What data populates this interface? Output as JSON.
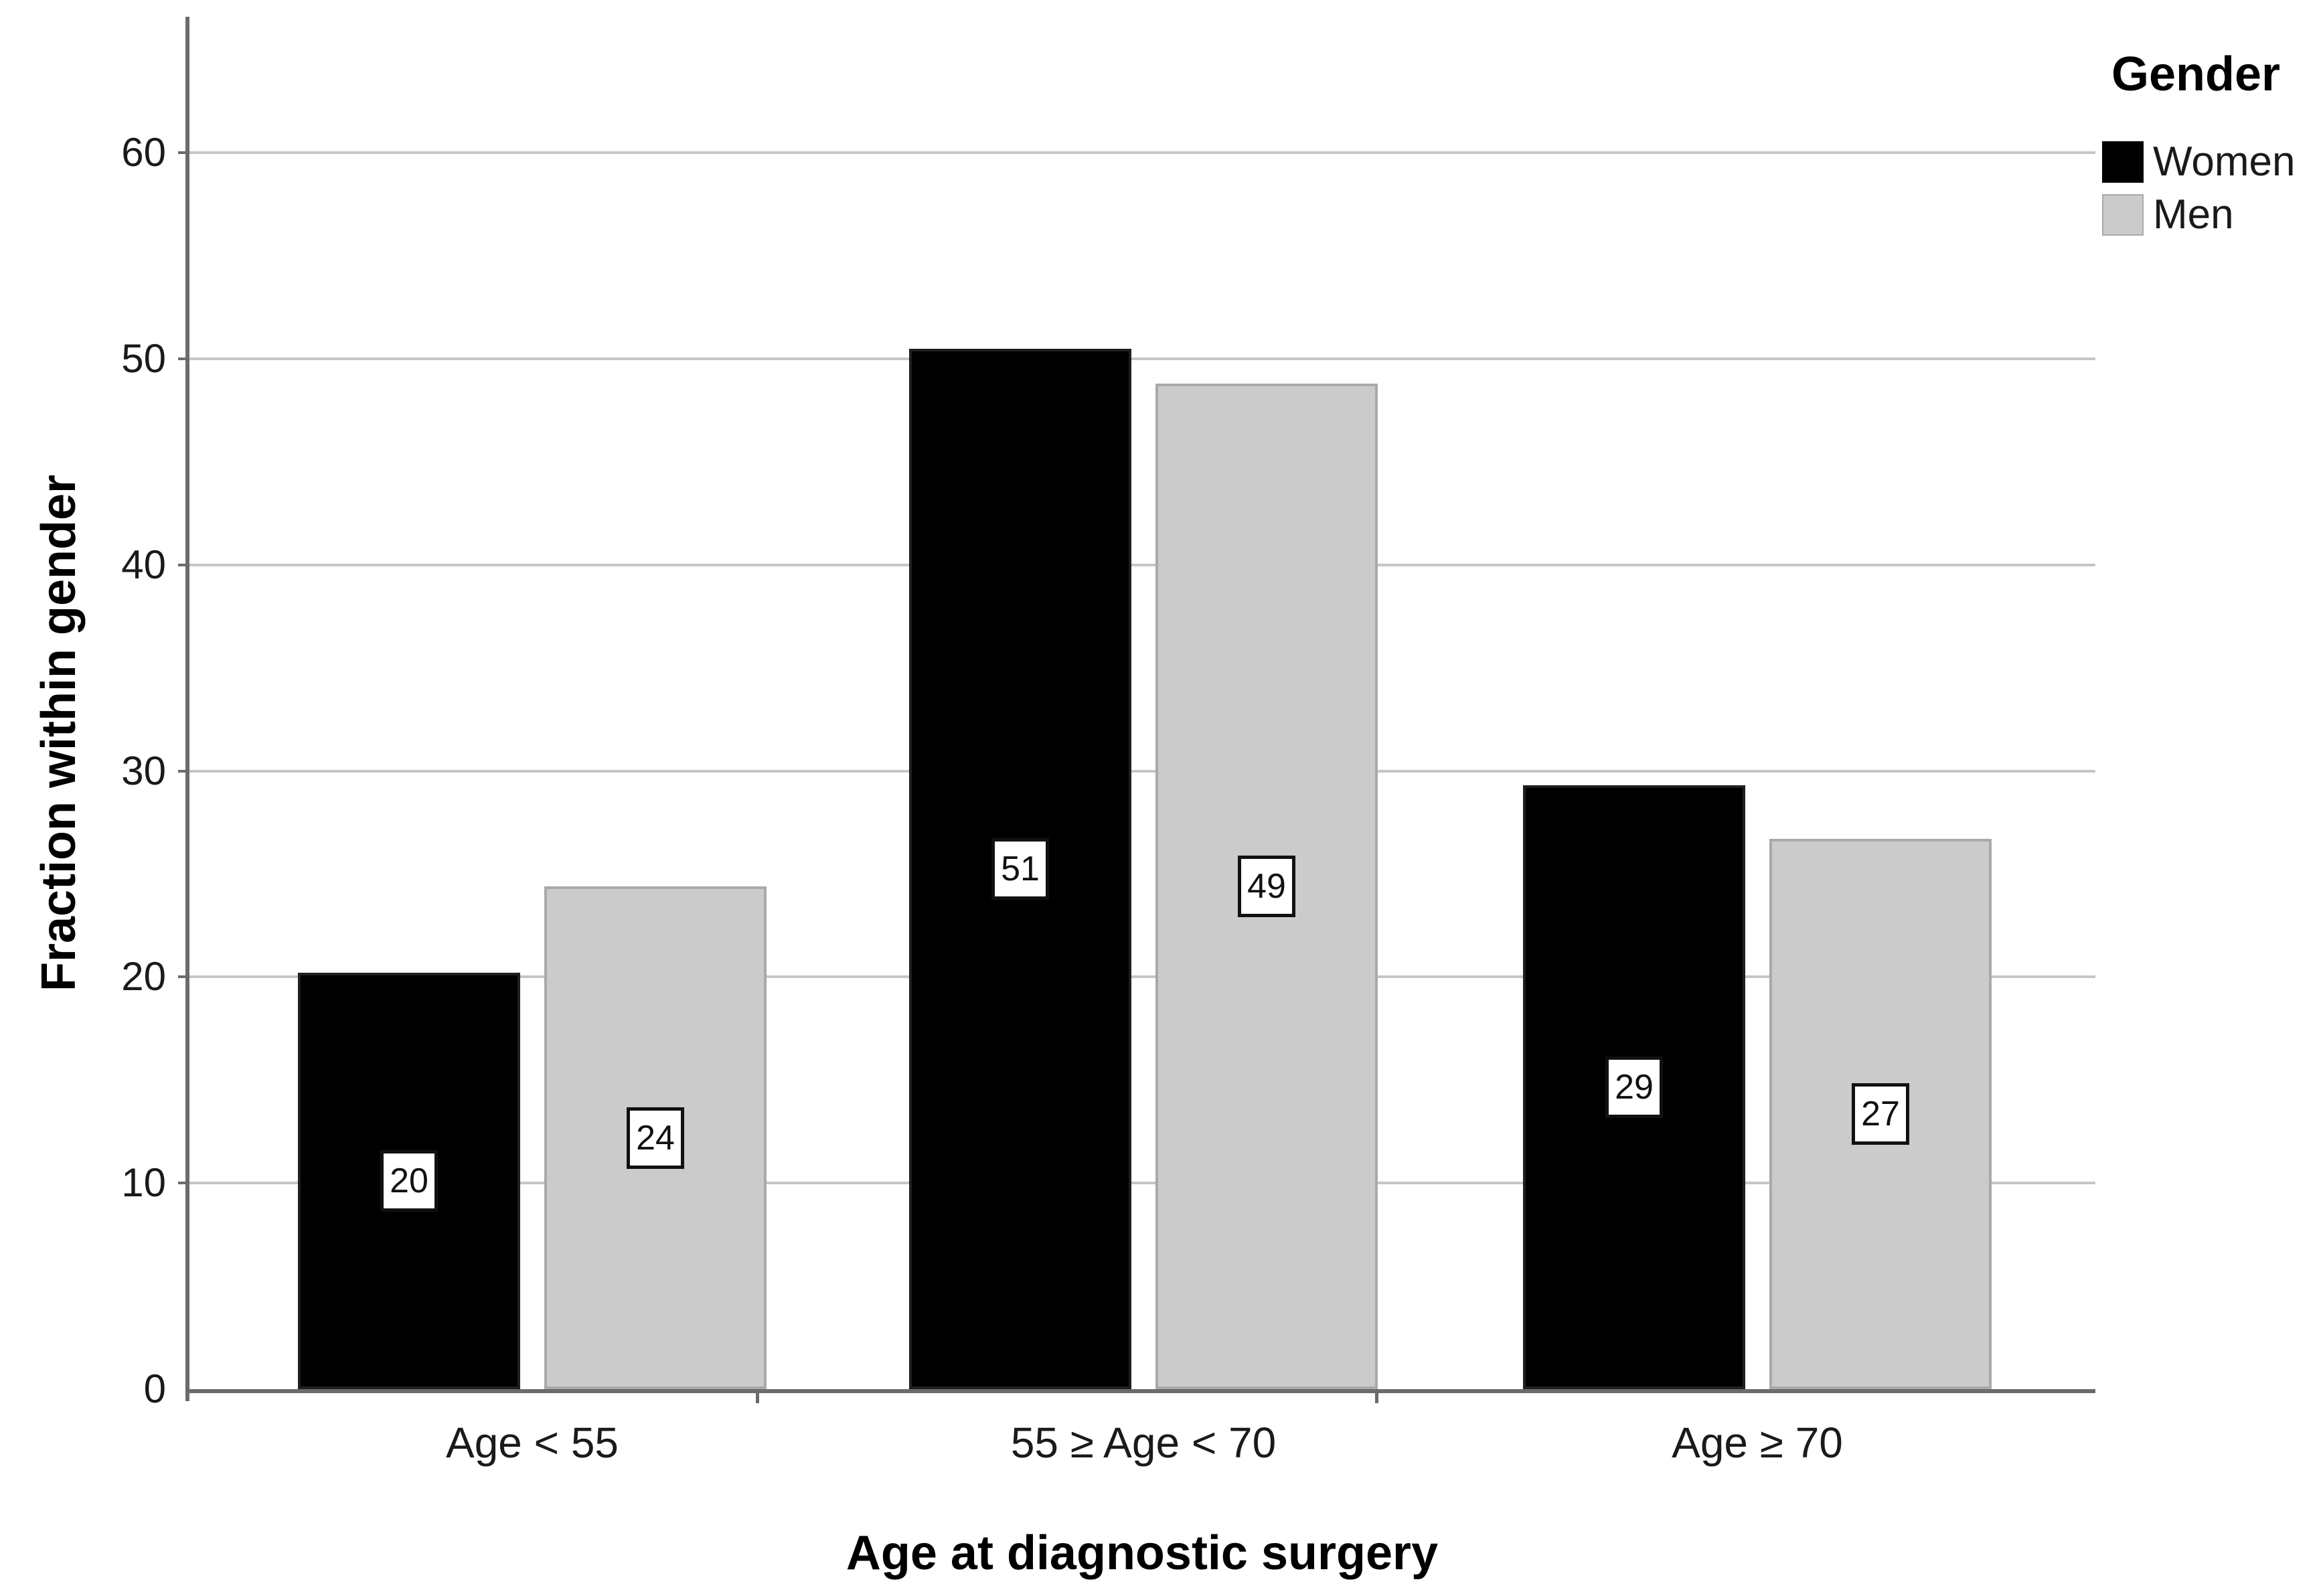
{
  "chart_data": {
    "type": "bar",
    "title": "",
    "xlabel": "Age at diagnostic surgery",
    "ylabel": "Fraction within gender",
    "categories": [
      "Age < 55",
      "55 ≥ Age < 70",
      "Age ≥ 70"
    ],
    "series": [
      {
        "name": "Women",
        "color": "#000000",
        "values": [
          20.2,
          50.5,
          29.3
        ],
        "bar_labels": [
          "20",
          "51",
          "29"
        ]
      },
      {
        "name": "Men",
        "color": "#cbcbcb",
        "values": [
          24.4,
          48.8,
          26.7
        ],
        "bar_labels": [
          "24",
          "49",
          "27"
        ]
      }
    ],
    "ylim": [
      0,
      66.6
    ],
    "yticks": [
      0,
      10,
      20,
      30,
      40,
      50,
      60
    ],
    "grid": true,
    "legend_title": "Gender",
    "legend_position": "top-right-outside",
    "value_labels_boxed": true
  },
  "colors": {
    "axis": "#6b6b6b",
    "grid": "#c6c6c6",
    "bar_gray_border": "#a9a9a9",
    "value_box_border": "#111111",
    "value_box_bg": "#ffffff",
    "background": "#ffffff"
  }
}
